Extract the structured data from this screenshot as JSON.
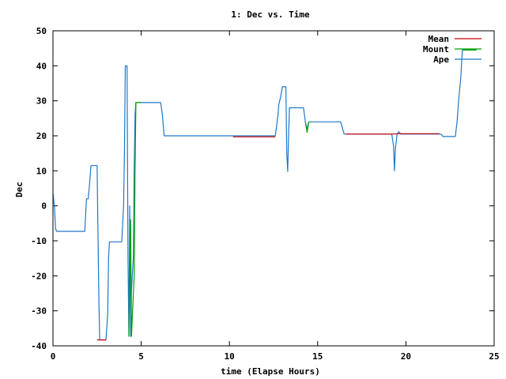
{
  "chart_data": {
    "type": "line",
    "title": "1: Dec vs. Time",
    "xlabel": "time (Elapse Hours)",
    "ylabel": "Dec",
    "xlim": [
      0,
      25
    ],
    "ylim": [
      -40,
      50
    ],
    "xticks": [
      0,
      5,
      10,
      15,
      20,
      25
    ],
    "yticks": [
      -40,
      -30,
      -20,
      -10,
      0,
      10,
      20,
      30,
      40,
      50
    ],
    "grid": false,
    "legend": "top-right",
    "series": [
      {
        "name": "Mean",
        "color": "#cc0000",
        "points": [
          [
            2.5,
            -38.3
          ],
          [
            3.0,
            -38.3
          ],
          [
            10.2,
            19.7
          ],
          [
            12.6,
            19.7
          ],
          [
            16.6,
            20.5
          ],
          [
            19.2,
            20.5
          ],
          [
            19.7,
            20.6
          ],
          [
            21.9,
            20.6
          ]
        ]
      },
      {
        "name": "Mount",
        "color": "#00a000",
        "points": [
          [
            4.3,
            -37.3
          ],
          [
            4.4,
            -4.0
          ],
          [
            4.45,
            -37.3
          ],
          [
            4.6,
            -20.0
          ],
          [
            4.65,
            10.0
          ],
          [
            4.7,
            29.5
          ],
          [
            5.0,
            29.5
          ],
          [
            14.3,
            24.0
          ],
          [
            14.4,
            21.0
          ],
          [
            14.5,
            24.0
          ],
          [
            23.2,
            44.5
          ],
          [
            24.0,
            44.5
          ]
        ]
      },
      {
        "name": "Ape",
        "color": "#1f78c8",
        "points": [
          [
            0,
            3.5
          ],
          [
            0.08,
            0
          ],
          [
            0.15,
            -6.5
          ],
          [
            0.2,
            -7.3
          ],
          [
            1.8,
            -7.3
          ],
          [
            1.9,
            2.0
          ],
          [
            2.0,
            2.0
          ],
          [
            2.05,
            5.0
          ],
          [
            2.1,
            8.0
          ],
          [
            2.15,
            11.5
          ],
          [
            2.5,
            11.5
          ],
          [
            2.55,
            -7.0
          ],
          [
            2.6,
            -26.0
          ],
          [
            2.65,
            -38.3
          ],
          [
            3.0,
            -38.3
          ],
          [
            3.1,
            -31.0
          ],
          [
            3.15,
            -15.0
          ],
          [
            3.2,
            -10.3
          ],
          [
            3.9,
            -10.3
          ],
          [
            4.0,
            0.0
          ],
          [
            4.05,
            15.0
          ],
          [
            4.1,
            40.0
          ],
          [
            4.2,
            40.0
          ],
          [
            4.25,
            -15.0
          ],
          [
            4.3,
            -37.3
          ],
          [
            4.35,
            0.0
          ],
          [
            4.4,
            -37.3
          ],
          [
            4.45,
            -24.0
          ],
          [
            4.55,
            -15.0
          ],
          [
            4.6,
            10.0
          ],
          [
            4.65,
            26.0
          ],
          [
            4.7,
            29.5
          ],
          [
            6.1,
            29.5
          ],
          [
            6.2,
            26.0
          ],
          [
            6.3,
            20.0
          ],
          [
            12.6,
            20.0
          ],
          [
            12.7,
            24.0
          ],
          [
            12.75,
            26.0
          ],
          [
            12.8,
            29.0
          ],
          [
            12.9,
            31.0
          ],
          [
            13.0,
            34.0
          ],
          [
            13.2,
            34.0
          ],
          [
            13.25,
            15.0
          ],
          [
            13.3,
            9.8
          ],
          [
            13.35,
            20.0
          ],
          [
            13.4,
            28.0
          ],
          [
            14.2,
            28.0
          ],
          [
            14.3,
            24.0
          ],
          [
            14.4,
            22.0
          ],
          [
            14.5,
            24.0
          ],
          [
            16.3,
            24.0
          ],
          [
            16.5,
            20.5
          ],
          [
            19.2,
            20.5
          ],
          [
            19.3,
            17.0
          ],
          [
            19.35,
            10.0
          ],
          [
            19.4,
            16.0
          ],
          [
            19.5,
            20.5
          ],
          [
            19.6,
            21.2
          ],
          [
            19.7,
            20.5
          ],
          [
            22.0,
            20.5
          ],
          [
            22.1,
            19.8
          ],
          [
            22.8,
            19.8
          ],
          [
            22.9,
            24.0
          ],
          [
            23.0,
            31.0
          ],
          [
            23.1,
            36.0
          ],
          [
            23.2,
            44.5
          ],
          [
            24.0,
            44.5
          ]
        ]
      }
    ]
  }
}
